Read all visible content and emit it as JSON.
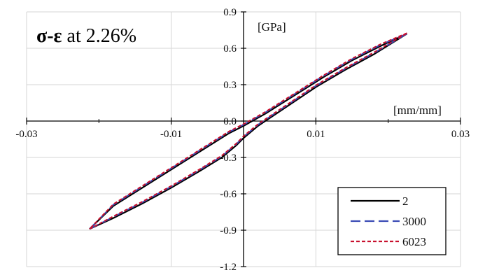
{
  "chart_data": {
    "type": "line",
    "title_prefix": "σ-ε",
    "title_suffix": " at 2.26%",
    "xunit": "[mm/mm]",
    "yunit": "[GPa]",
    "xlim": [
      -0.03,
      0.03
    ],
    "ylim": [
      -1.2,
      0.9
    ],
    "xticks": [
      -0.03,
      -0.01,
      0.01,
      0.03
    ],
    "xtick_labels": [
      "-0.03",
      "-0.01",
      "0.01",
      "0.03"
    ],
    "yticks": [
      0.9,
      0.6,
      0.3,
      0.0,
      -0.3,
      -0.6,
      -0.9,
      -1.2
    ],
    "ytick_labels": [
      "0.9",
      "0.6",
      "0.3",
      "0.0",
      "-0.3",
      "-0.6",
      "-0.9",
      "-1.2"
    ],
    "grid": true,
    "legend_position": "bottom-right",
    "series": [
      {
        "name": "2",
        "color": "#000000",
        "dash": "solid",
        "loading_x": [
          -0.0213,
          -0.018,
          -0.014,
          -0.01,
          -0.006,
          -0.003,
          -0.001,
          0.0,
          0.002,
          0.006,
          0.01,
          0.014,
          0.018,
          0.0226
        ],
        "loading_y": [
          -0.89,
          -0.8,
          -0.68,
          -0.55,
          -0.41,
          -0.3,
          -0.2,
          -0.14,
          -0.04,
          0.12,
          0.28,
          0.42,
          0.55,
          0.72
        ],
        "unloading_x": [
          0.0226,
          0.019,
          0.015,
          0.011,
          0.007,
          0.003,
          0.0,
          -0.002,
          -0.006,
          -0.01,
          -0.014,
          -0.018,
          -0.0213
        ],
        "unloading_y": [
          0.72,
          0.62,
          0.5,
          0.36,
          0.21,
          0.06,
          -0.04,
          -0.1,
          -0.25,
          -0.4,
          -0.55,
          -0.7,
          -0.89
        ]
      },
      {
        "name": "3000",
        "color": "#3b4bb5",
        "dash": "long-dash",
        "loading_x": [
          -0.0213,
          -0.018,
          -0.014,
          -0.01,
          -0.006,
          -0.003,
          -0.001,
          0.0,
          0.002,
          0.006,
          0.01,
          0.014,
          0.018,
          0.0226
        ],
        "loading_y": [
          -0.89,
          -0.79,
          -0.67,
          -0.54,
          -0.4,
          -0.29,
          -0.19,
          -0.13,
          -0.03,
          0.13,
          0.29,
          0.43,
          0.56,
          0.72
        ],
        "unloading_x": [
          0.0226,
          0.019,
          0.015,
          0.011,
          0.007,
          0.003,
          0.0,
          -0.002,
          -0.006,
          -0.01,
          -0.014,
          -0.018,
          -0.0213
        ],
        "unloading_y": [
          0.72,
          0.63,
          0.51,
          0.37,
          0.22,
          0.07,
          -0.03,
          -0.09,
          -0.24,
          -0.39,
          -0.54,
          -0.69,
          -0.89
        ]
      },
      {
        "name": "6023",
        "color": "#c8102e",
        "dash": "short-dash",
        "loading_x": [
          -0.0213,
          -0.018,
          -0.014,
          -0.01,
          -0.006,
          -0.003,
          -0.001,
          0.0,
          0.002,
          0.006,
          0.01,
          0.014,
          0.018,
          0.0226
        ],
        "loading_y": [
          -0.89,
          -0.785,
          -0.665,
          -0.535,
          -0.395,
          -0.285,
          -0.185,
          -0.125,
          -0.025,
          0.135,
          0.295,
          0.435,
          0.565,
          0.725
        ],
        "unloading_x": [
          0.0226,
          0.019,
          0.015,
          0.011,
          0.007,
          0.003,
          0.0,
          -0.002,
          -0.006,
          -0.01,
          -0.014,
          -0.018,
          -0.0213
        ],
        "unloading_y": [
          0.725,
          0.635,
          0.515,
          0.375,
          0.225,
          0.075,
          -0.025,
          -0.085,
          -0.235,
          -0.385,
          -0.535,
          -0.685,
          -0.89
        ]
      }
    ]
  }
}
